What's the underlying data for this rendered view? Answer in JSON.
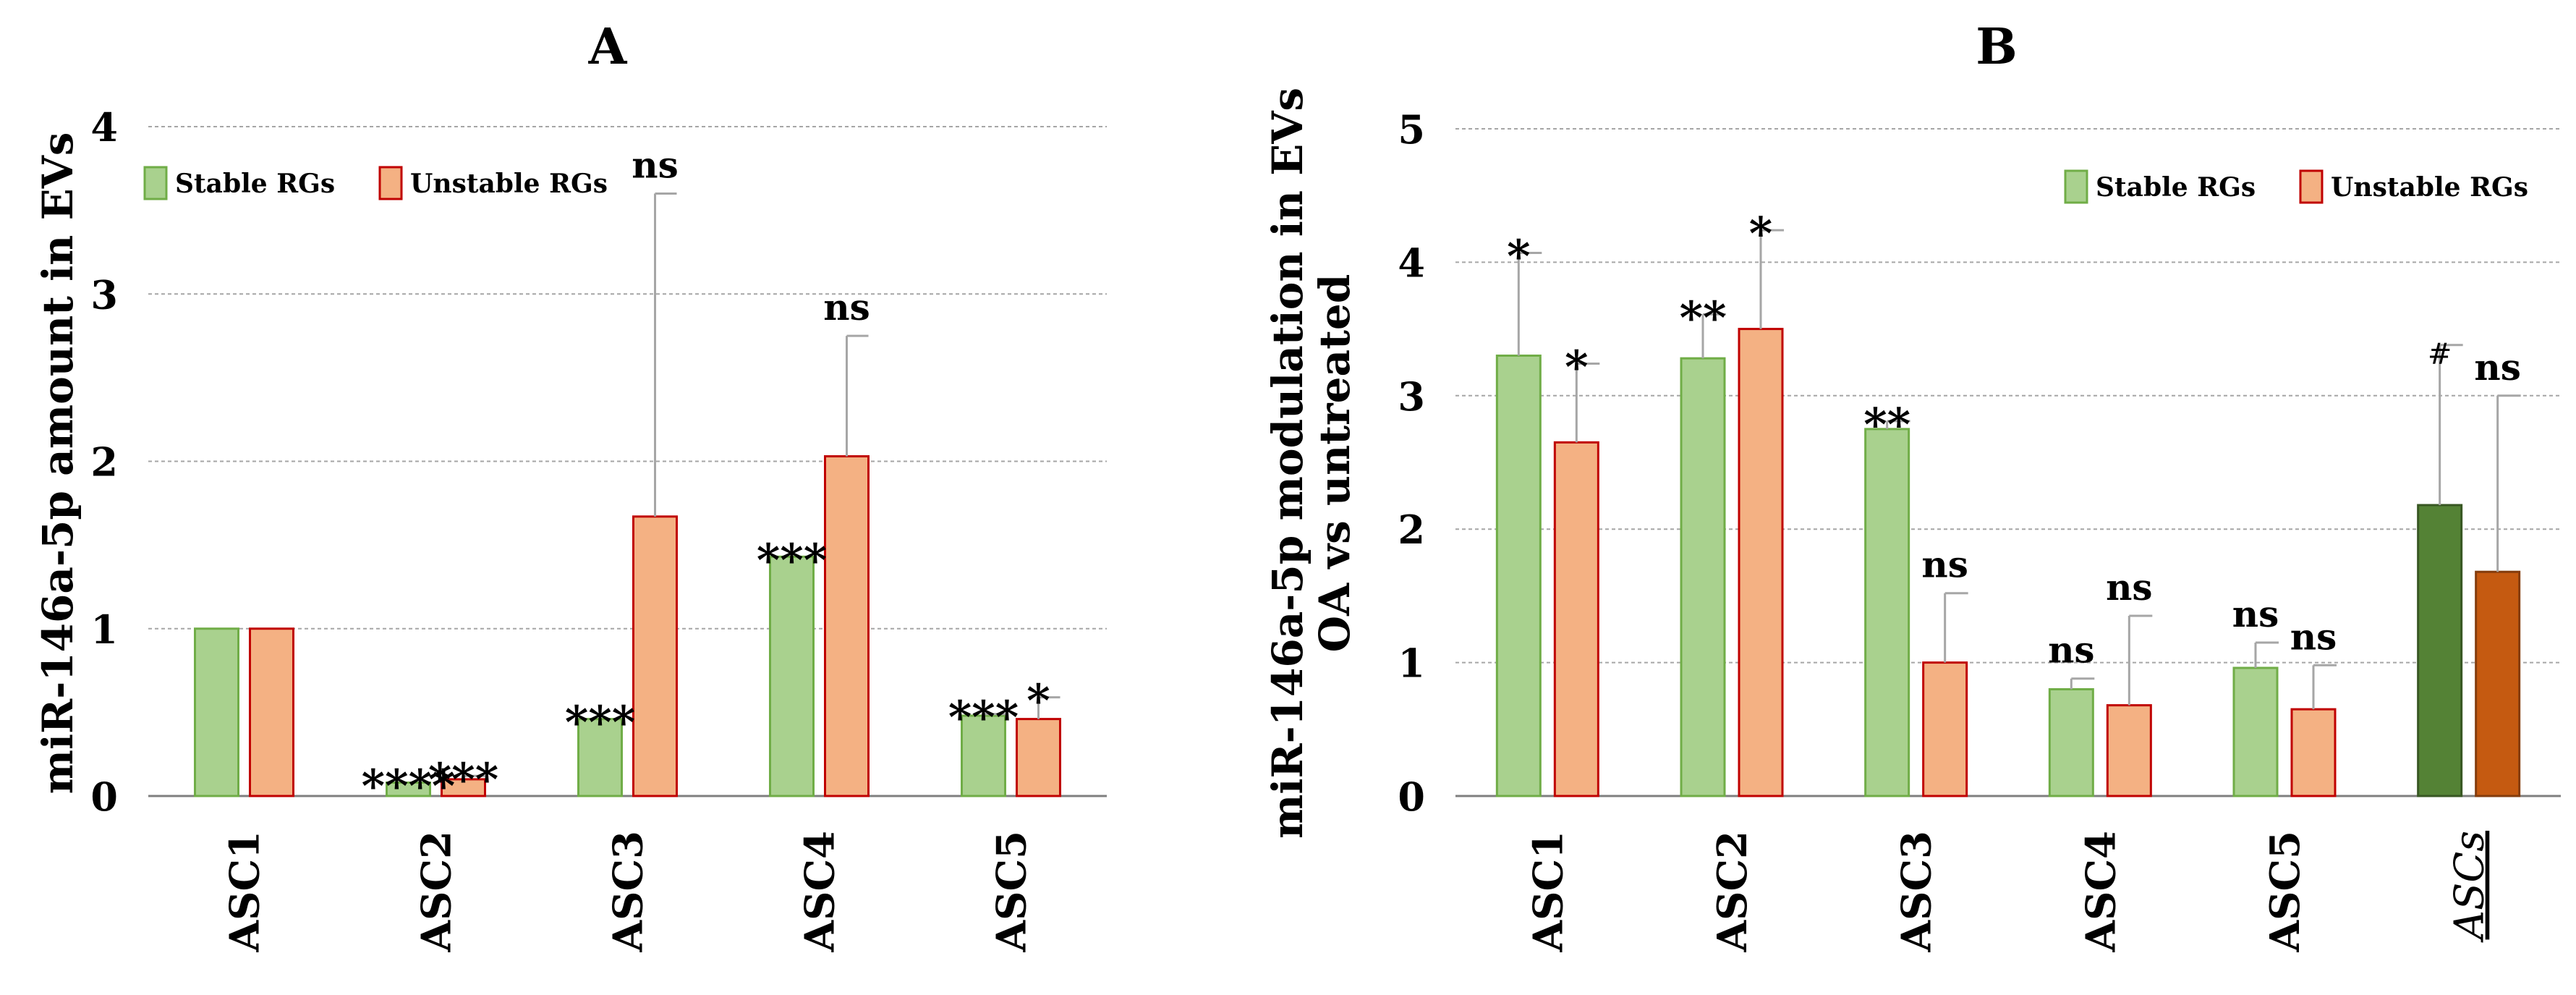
{
  "colors": {
    "stable_fill": "#a9d18e",
    "stable_stroke": "#70ad47",
    "unstable_fill": "#f4b183",
    "unstable_stroke": "#c00000",
    "stable_dark_fill": "#548235",
    "stable_dark_stroke": "#385723",
    "unstable_dark_fill": "#c55a11",
    "unstable_dark_stroke": "#843c0c",
    "grid": "#a6a6a6",
    "error": "#a6a6a6",
    "axis": "#7f7f7f",
    "text": "#000000"
  },
  "chart_data": [
    {
      "panel": "A",
      "type": "bar",
      "title": "A",
      "xlabel": "",
      "ylabel": "miR-146a-5p amount in EVs",
      "ylim": [
        0,
        4
      ],
      "yticks": [
        "0",
        "1",
        "2",
        "3",
        "4"
      ],
      "grid": true,
      "legend_position": "top-left",
      "categories": [
        "ASC1",
        "ASC2",
        "ASC3",
        "ASC4",
        "ASC5"
      ],
      "series": [
        {
          "name": "Stable RGs",
          "values": [
            1.0,
            0.08,
            0.46,
            1.43,
            0.48
          ],
          "errors": [
            0,
            0,
            0,
            0,
            0.01
          ],
          "labels": [
            "",
            "****",
            "***",
            "***",
            "***"
          ]
        },
        {
          "name": "Unstable RGs",
          "values": [
            1.0,
            0.1,
            1.67,
            2.03,
            0.46
          ],
          "errors": [
            0,
            0.02,
            1.93,
            0.72,
            0.13
          ],
          "labels": [
            "",
            "***",
            "ns",
            "ns",
            "*"
          ]
        }
      ]
    },
    {
      "panel": "B",
      "type": "bar",
      "title": "B",
      "xlabel": "",
      "ylabel": "miR-146a-5p modulation in EVs",
      "ylabel2": "OA vs untreated",
      "ylim": [
        0,
        5
      ],
      "yticks": [
        "0",
        "1",
        "2",
        "3",
        "4",
        "5"
      ],
      "grid": true,
      "legend_position": "top-right",
      "categories": [
        "ASC1",
        "ASC2",
        "ASC3",
        "ASC4",
        "ASC5",
        "ASCs"
      ],
      "series": [
        {
          "name": "Stable RGs",
          "values": [
            3.3,
            3.28,
            2.75,
            0.8,
            0.96,
            2.18
          ],
          "errors": [
            0.77,
            0.33,
            0.06,
            0.08,
            0.19,
            1.2
          ],
          "labels": [
            "*",
            "**",
            "**",
            "ns",
            "ns",
            "#"
          ]
        },
        {
          "name": "Unstable RGs",
          "values": [
            2.65,
            3.5,
            1.0,
            0.68,
            0.65,
            1.68
          ],
          "errors": [
            0.59,
            0.74,
            0.52,
            0.67,
            0.33,
            1.32
          ],
          "labels": [
            "*",
            "*",
            "ns",
            "ns",
            "ns",
            "ns"
          ]
        }
      ]
    }
  ]
}
